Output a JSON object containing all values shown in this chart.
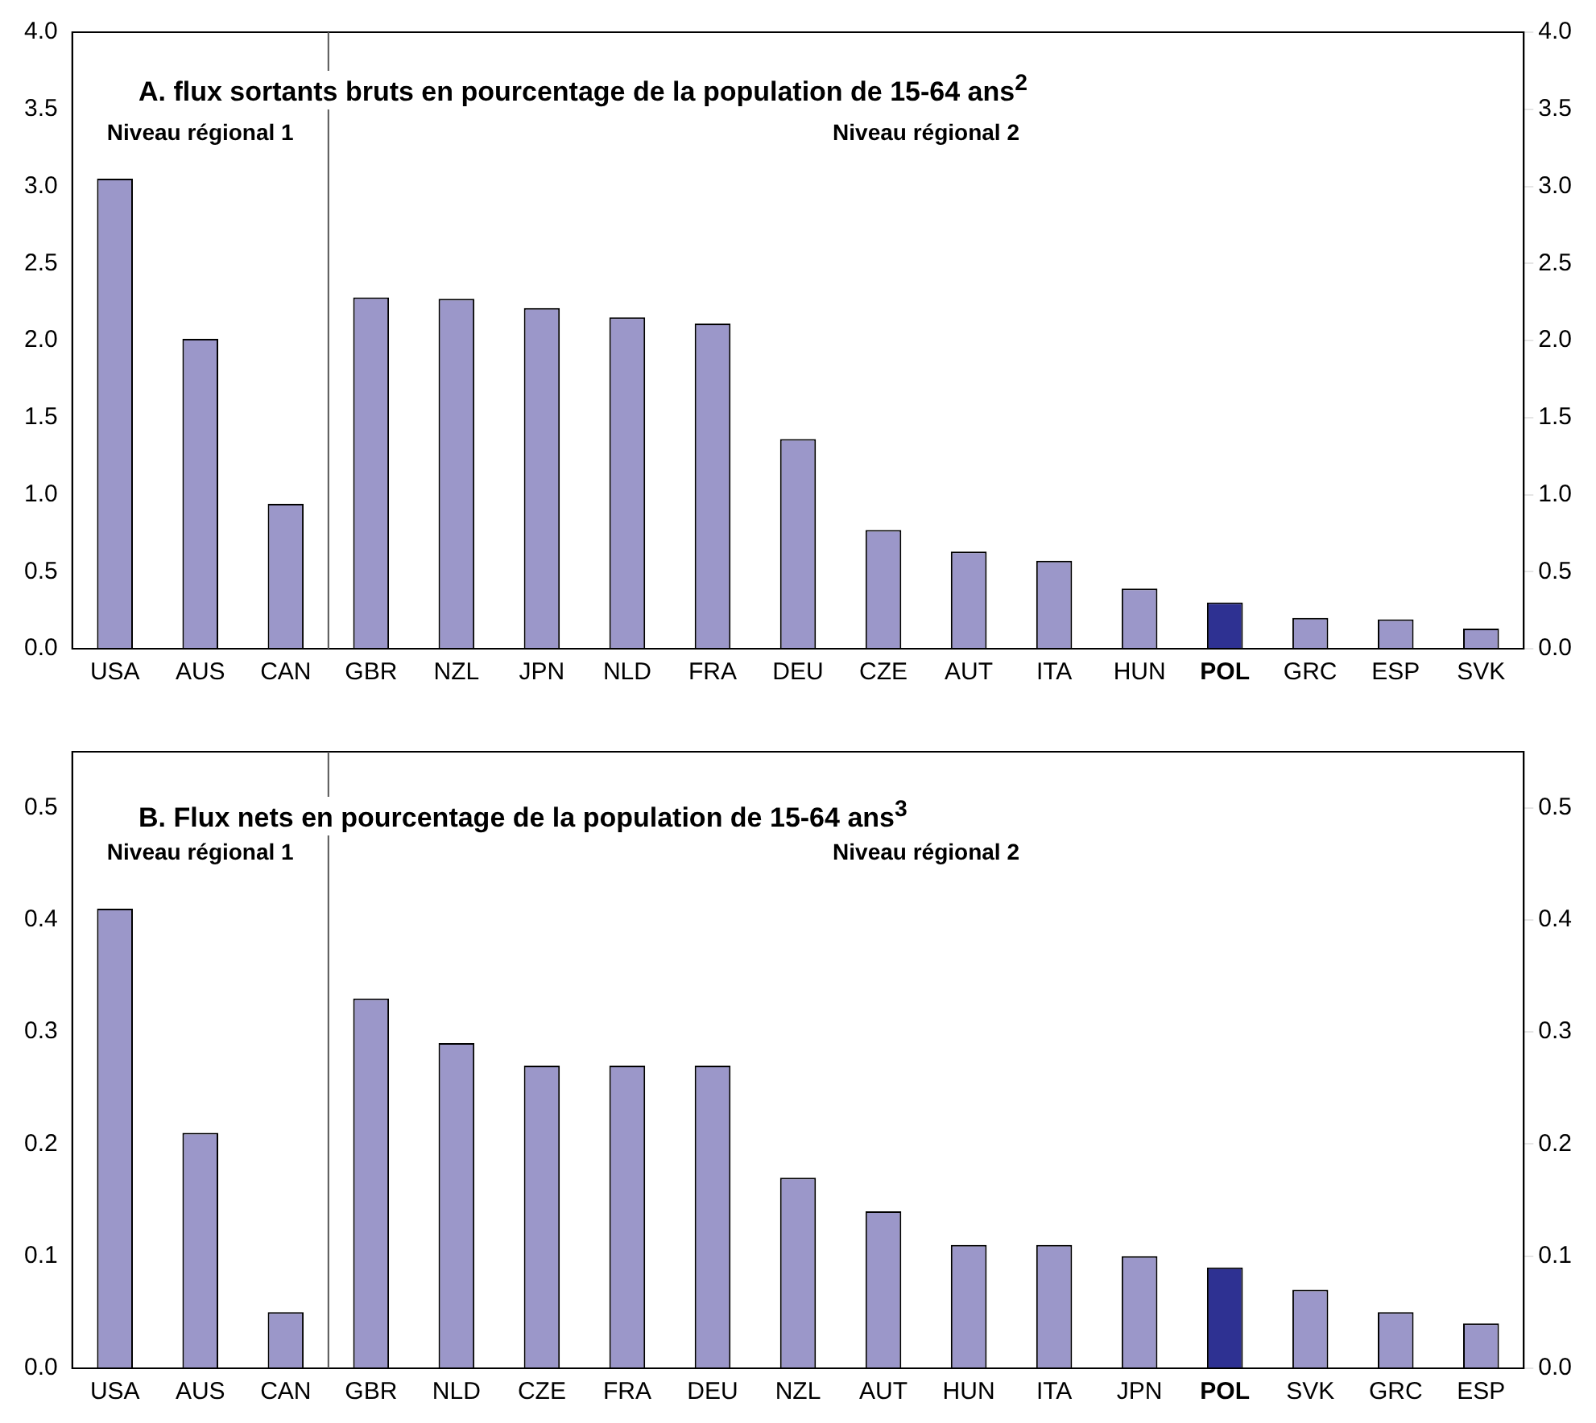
{
  "chart_data": [
    {
      "type": "bar",
      "title": "A. flux sortants bruts en pourcentage de la population de 15-64 ans$^{2}$",
      "categories": [
        "USA",
        "AUS",
        "CAN",
        "GBR",
        "NZL",
        "JPN",
        "NLD",
        "FRA",
        "DEU",
        "CZE",
        "AUT",
        "ITA",
        "HUN",
        "POL",
        "GRC",
        "ESP",
        "SVK"
      ],
      "values": [
        3.05,
        2.01,
        0.94,
        2.28,
        2.27,
        2.21,
        2.15,
        2.11,
        1.36,
        0.77,
        0.63,
        0.57,
        0.39,
        0.3,
        0.2,
        0.19,
        0.13
      ],
      "colors": [
        "#9b97c9",
        "#9b97c9",
        "#9b97c9",
        "#9b97c9",
        "#9b97c9",
        "#9b97c9",
        "#9b97c9",
        "#9b97c9",
        "#9b97c9",
        "#9b97c9",
        "#9b97c9",
        "#9b97c9",
        "#9b97c9",
        "#2e3192",
        "#9b97c9",
        "#9b97c9",
        "#9b97c9"
      ],
      "ylim": [
        0,
        4
      ],
      "yticks": [
        {
          "value": 0,
          "label": "0.0"
        },
        {
          "value": 0.5,
          "label": "0.5"
        },
        {
          "value": 1,
          "label": "1.0"
        },
        {
          "value": 1.5,
          "label": "1.5"
        },
        {
          "value": 2,
          "label": "2.0"
        },
        {
          "value": 2.5,
          "label": "2.5"
        },
        {
          "value": 3,
          "label": "3.0"
        },
        {
          "value": 3.5,
          "label": "3.5"
        },
        {
          "value": 4,
          "label": "4.0"
        }
      ],
      "y2lim": [
        0,
        4
      ],
      "y2ticks": [
        {
          "value": 0,
          "label": "0.0"
        },
        {
          "value": 0.5,
          "label": "0.5"
        },
        {
          "value": 1,
          "label": "1.0"
        },
        {
          "value": 1.5,
          "label": "1.5"
        },
        {
          "value": 2,
          "label": "2.0"
        },
        {
          "value": 2.5,
          "label": "2.5"
        },
        {
          "value": 3,
          "label": "3.0"
        },
        {
          "value": 3.5,
          "label": "3.5"
        },
        {
          "value": 4,
          "label": "4.0"
        }
      ],
      "annotations": [
        "Niveau régional 1",
        "Niveau régional 2"
      ],
      "grid": false,
      "legend": false
    },
    {
      "type": "bar",
      "title": "B. Flux nets en pourcentage de la population de 15-64 ans$^{3}$",
      "categories": [
        "USA",
        "AUS",
        "CAN",
        "GBR",
        "NLD",
        "CZE",
        "FRA",
        "DEU",
        "NZL",
        "AUT",
        "HUN",
        "ITA",
        "JPN",
        "POL",
        "SVK",
        "GRC",
        "ESP"
      ],
      "values": [
        0.41,
        0.21,
        0.05,
        0.33,
        0.29,
        0.27,
        0.27,
        0.27,
        0.17,
        0.14,
        0.11,
        0.11,
        0.1,
        0.09,
        0.07,
        0.05,
        0.04
      ],
      "colors": [
        "#9b97c9",
        "#9b97c9",
        "#9b97c9",
        "#9b97c9",
        "#9b97c9",
        "#9b97c9",
        "#9b97c9",
        "#9b97c9",
        "#9b97c9",
        "#9b97c9",
        "#9b97c9",
        "#9b97c9",
        "#9b97c9",
        "#2e3192",
        "#9b97c9",
        "#9b97c9",
        "#9b97c9"
      ],
      "ylim": [
        0,
        0.55
      ],
      "yticks": [
        {
          "value": 0,
          "label": "0.0"
        },
        {
          "value": 0.1,
          "label": "0.1"
        },
        {
          "value": 0.2,
          "label": "0.2"
        },
        {
          "value": 0.3,
          "label": "0.3"
        },
        {
          "value": 0.4,
          "label": "0.4"
        },
        {
          "value": 0.5,
          "label": "0.5"
        }
      ],
      "y2lim": [
        0,
        0.55
      ],
      "y2ticks": [
        {
          "value": 0,
          "label": "0.0"
        },
        {
          "value": 0.1,
          "label": "0.1"
        },
        {
          "value": 0.2,
          "label": "0.2"
        },
        {
          "value": 0.3,
          "label": "0.3"
        },
        {
          "value": 0.4,
          "label": "0.4"
        },
        {
          "value": 0.5,
          "label": "0.5"
        }
      ],
      "annotations": [
        "Niveau régional 1",
        "Niveau régional 2"
      ],
      "grid": false,
      "legend": false
    }
  ]
}
